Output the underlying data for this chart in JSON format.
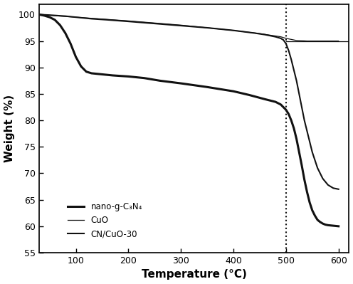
{
  "title": "",
  "xlabel": "Temperature (°C)",
  "ylabel": "Weight (%)",
  "xlim": [
    30,
    620
  ],
  "ylim": [
    55,
    102
  ],
  "yticks": [
    55,
    60,
    65,
    70,
    75,
    80,
    85,
    90,
    95,
    100
  ],
  "xticks": [
    100,
    200,
    300,
    400,
    500,
    600
  ],
  "dotted_vline_x": 500,
  "horizontal_line_y": 95.0,
  "legend_labels": [
    "nano-g-C₃N₄",
    "CuO",
    "CN/CuO-30"
  ],
  "line_color": "#111111",
  "background_color": "#ffffff",
  "nano_g_C3N4": {
    "x": [
      30,
      40,
      50,
      60,
      70,
      80,
      90,
      100,
      110,
      120,
      130,
      140,
      150,
      170,
      200,
      230,
      260,
      300,
      350,
      400,
      430,
      460,
      480,
      490,
      500,
      505,
      510,
      515,
      520,
      525,
      530,
      535,
      540,
      545,
      550,
      555,
      560,
      565,
      570,
      575,
      580,
      590,
      600
    ],
    "y": [
      100,
      99.8,
      99.5,
      99.0,
      98.0,
      96.5,
      94.5,
      92.0,
      90.2,
      89.2,
      88.9,
      88.8,
      88.7,
      88.5,
      88.3,
      88.0,
      87.5,
      87.0,
      86.3,
      85.5,
      84.8,
      84.0,
      83.5,
      83.0,
      82.0,
      81.2,
      80.0,
      78.5,
      76.5,
      74.0,
      71.5,
      68.8,
      66.5,
      64.5,
      63.0,
      62.0,
      61.2,
      60.8,
      60.5,
      60.3,
      60.2,
      60.1,
      60.0
    ]
  },
  "CuO": {
    "x": [
      30,
      100,
      200,
      300,
      400,
      450,
      490,
      500,
      510,
      520,
      540,
      560,
      580,
      600
    ],
    "y": [
      100,
      99.5,
      98.8,
      98.0,
      97.0,
      96.4,
      95.8,
      95.5,
      95.3,
      95.1,
      95.0,
      95.0,
      95.0,
      95.0
    ]
  },
  "CN_CuO_30": {
    "x": [
      30,
      50,
      80,
      100,
      130,
      160,
      200,
      250,
      300,
      350,
      400,
      440,
      460,
      480,
      490,
      495,
      500,
      505,
      510,
      515,
      520,
      525,
      530,
      535,
      540,
      550,
      560,
      570,
      580,
      590,
      600
    ],
    "y": [
      100,
      99.9,
      99.7,
      99.5,
      99.2,
      99.0,
      98.7,
      98.3,
      97.9,
      97.5,
      97.0,
      96.5,
      96.2,
      95.8,
      95.5,
      95.2,
      94.5,
      93.2,
      91.5,
      89.5,
      87.5,
      85.0,
      82.5,
      80.0,
      78.0,
      74.0,
      71.0,
      69.0,
      67.8,
      67.2,
      67.0
    ]
  }
}
